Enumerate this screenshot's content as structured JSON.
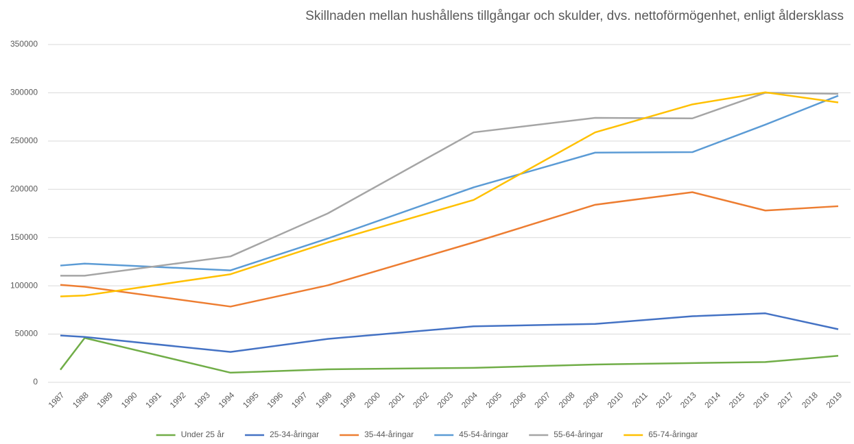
{
  "chart_data": {
    "type": "line",
    "title": "Skillnaden mellan hushållens tillgångar och skulder, dvs. nettoförmögenhet, enligt åldersklass",
    "x": [
      1987,
      1988,
      1994,
      1998,
      2004,
      2009,
      2013,
      2016,
      2019
    ],
    "xlim": [
      1987,
      2019
    ],
    "xticks": [
      1987,
      1988,
      1989,
      1990,
      1991,
      1992,
      1993,
      1994,
      1995,
      1996,
      1997,
      1998,
      1999,
      2000,
      2001,
      2002,
      2003,
      2004,
      2005,
      2006,
      2007,
      2008,
      2009,
      2010,
      2011,
      2012,
      2013,
      2014,
      2015,
      2016,
      2017,
      2018,
      2019
    ],
    "ylim": [
      0,
      350000
    ],
    "yticks": [
      0,
      50000,
      100000,
      150000,
      200000,
      250000,
      300000,
      350000
    ],
    "grid": true,
    "legend": "bottom",
    "series": [
      {
        "name": "Under 25 år",
        "color": "#70ad47",
        "values": [
          13000,
          46000,
          10000,
          13500,
          15000,
          18500,
          20000,
          21000,
          27500
        ]
      },
      {
        "name": "25-34-åringar",
        "color": "#4472c4",
        "values": [
          48500,
          47000,
          31500,
          45000,
          58000,
          60500,
          68500,
          71500,
          55000
        ]
      },
      {
        "name": "35-44-åringar",
        "color": "#ed7d31",
        "values": [
          101000,
          99000,
          78500,
          100500,
          145000,
          184000,
          197000,
          178000,
          182500
        ]
      },
      {
        "name": "45-54-åringar",
        "color": "#5b9bd5",
        "values": [
          121000,
          123000,
          116000,
          149000,
          202000,
          238000,
          238500,
          267000,
          297000
        ]
      },
      {
        "name": "55-64-åringar",
        "color": "#a5a5a5",
        "values": [
          110500,
          110500,
          130500,
          175000,
          259000,
          274000,
          273500,
          300000,
          299000
        ]
      },
      {
        "name": "65-74-åringar",
        "color": "#ffc000",
        "values": [
          89000,
          90000,
          112000,
          145000,
          189000,
          259000,
          288000,
          300500,
          290000
        ]
      }
    ]
  }
}
